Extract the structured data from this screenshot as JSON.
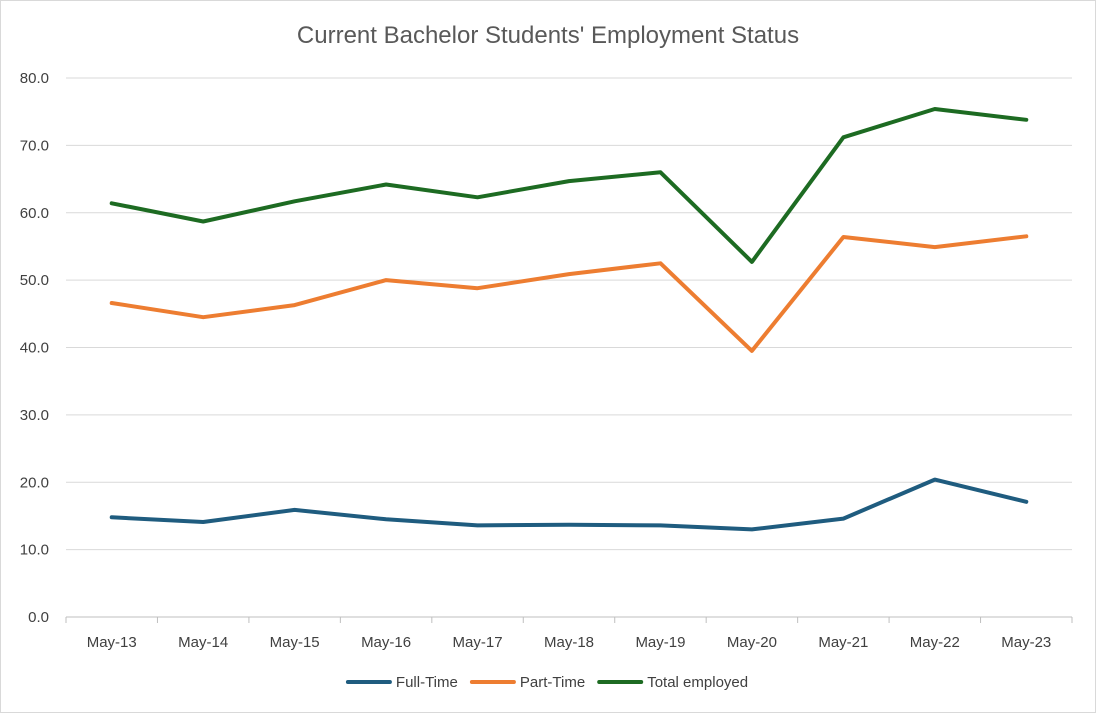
{
  "chart_data": {
    "type": "line",
    "title": "Current Bachelor Students' Employment Status",
    "xlabel": "",
    "ylabel": "",
    "categories": [
      "May-13",
      "May-14",
      "May-15",
      "May-16",
      "May-17",
      "May-18",
      "May-19",
      "May-20",
      "May-21",
      "May-22",
      "May-23"
    ],
    "ylim": [
      0,
      80
    ],
    "yticks": [
      "0.0",
      "10.0",
      "20.0",
      "30.0",
      "40.0",
      "50.0",
      "60.0",
      "70.0",
      "80.0"
    ],
    "grid": true,
    "legend_position": "bottom",
    "series": [
      {
        "name": "Full-Time",
        "color": "#1f5c7f",
        "values": [
          14.8,
          14.1,
          15.9,
          14.5,
          13.6,
          13.7,
          13.6,
          13.0,
          14.6,
          20.4,
          17.1
        ]
      },
      {
        "name": "Part-Time",
        "color": "#ed7d31",
        "values": [
          46.6,
          44.5,
          46.3,
          50.0,
          48.8,
          50.9,
          52.5,
          39.5,
          56.4,
          54.9,
          56.5
        ]
      },
      {
        "name": "Total employed",
        "color": "#1d6b22",
        "values": [
          61.4,
          58.7,
          61.7,
          64.2,
          62.3,
          64.7,
          66.0,
          52.7,
          71.2,
          75.4,
          73.8
        ]
      }
    ]
  }
}
